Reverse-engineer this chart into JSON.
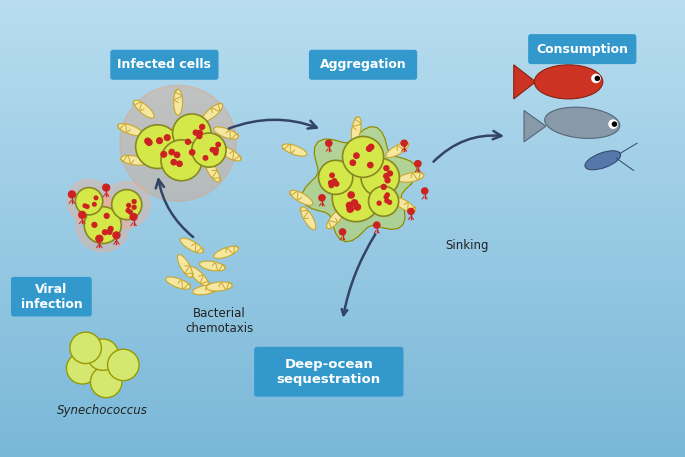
{
  "bg_color_top": "#b8ddf0",
  "bg_color_bottom": "#7ab8d8",
  "label_box_color": "#3399cc",
  "label_text_color": "#ffffff",
  "arrow_color": "#334466",
  "cell_color": "#d4e84a",
  "cell_border": "#888820",
  "bacteria_color": "#f5e6a0",
  "bacteria_border": "#c8a830",
  "red_dot_color": "#cc2222",
  "virus_color": "#cc2222",
  "glow_color": "#ff8866",
  "text_color": "#222222",
  "labels": {
    "infected_cells": "Infected cells",
    "aggregation": "Aggregation",
    "consumption": "Consumption",
    "viral_infection": "Viral\ninfection",
    "bacterial_chemotaxis": "Bacterial\nchemotaxis",
    "sinking": "Sinking",
    "deep_ocean": "Deep-ocean\nsequestration",
    "synechococcus": "Synechococcus"
  },
  "fig_width": 6.85,
  "fig_height": 4.57,
  "dpi": 100
}
